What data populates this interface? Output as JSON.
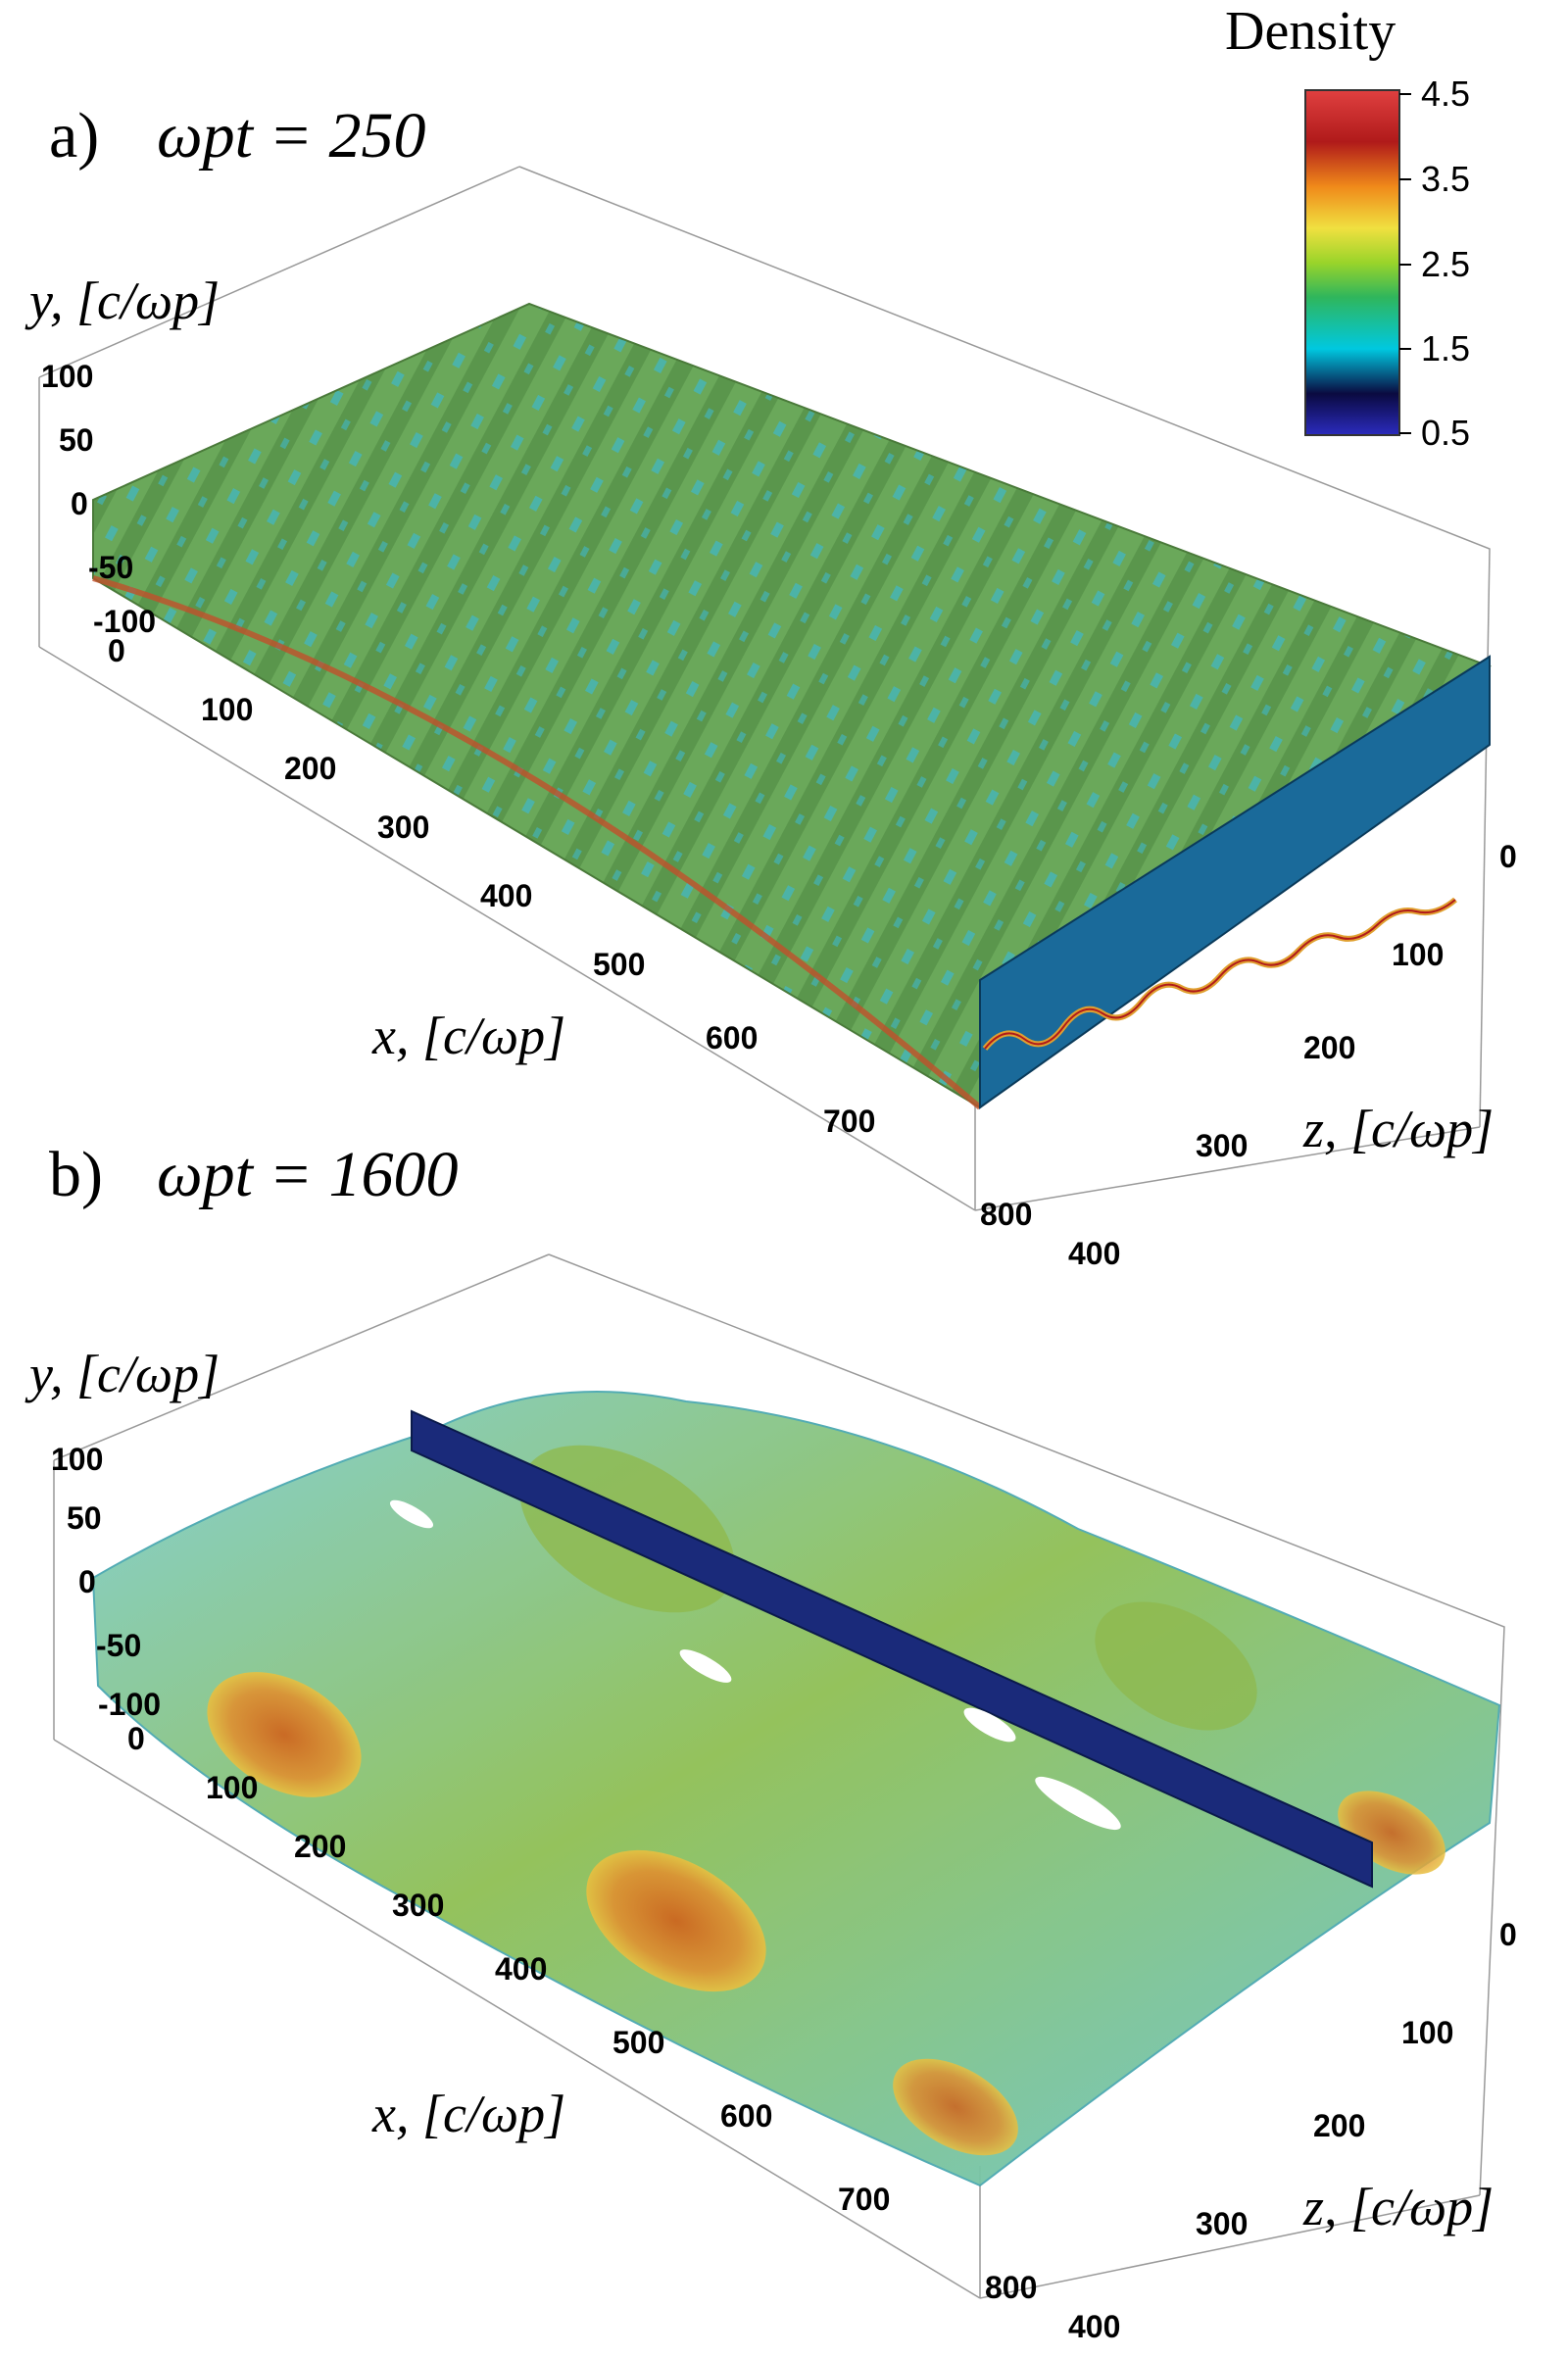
{
  "colorbar": {
    "title": "Density",
    "ticks": [
      "4.5",
      "3.5",
      "2.5",
      "1.5",
      "0.5"
    ],
    "range": [
      0.5,
      4.5
    ],
    "colors": [
      "#2b2bbf",
      "#0a0a40",
      "#00c8e0",
      "#2fb65c",
      "#9ad42a",
      "#f0e040",
      "#f08a1a",
      "#b01a1a",
      "#e04040"
    ]
  },
  "panels": [
    {
      "label": "a)",
      "time": "ωpt = 250",
      "y_axis": {
        "label": "y, [c/ωp]",
        "ticks": [
          "100",
          "50",
          "0",
          "-50",
          "-100"
        ]
      },
      "x_axis": {
        "label": "x, [c/ωp]",
        "ticks": [
          "0",
          "100",
          "200",
          "300",
          "400",
          "500",
          "600",
          "700",
          "800"
        ]
      },
      "z_axis": {
        "label": "z, [c/ωp]",
        "ticks": [
          "0",
          "100",
          "200",
          "300",
          "400"
        ]
      },
      "surface_colors": {
        "main": "#6aa85a",
        "accent": "#3fb8c8",
        "edge": "#c0502a"
      }
    },
    {
      "label": "b)",
      "time": "ωpt = 1600",
      "y_axis": {
        "label": "y, [c/ωp]",
        "ticks": [
          "100",
          "50",
          "0",
          "-50",
          "-100"
        ]
      },
      "x_axis": {
        "label": "x, [c/ωp]",
        "ticks": [
          "0",
          "100",
          "200",
          "300",
          "400",
          "500",
          "600",
          "700",
          "800"
        ]
      },
      "z_axis": {
        "label": "z, [c/ωp]",
        "ticks": [
          "0",
          "100",
          "200",
          "300",
          "400"
        ]
      },
      "surface_colors": {
        "main": "#8fb84a",
        "accent": "#5fd0d8",
        "edge": "#d05a1a"
      }
    }
  ]
}
